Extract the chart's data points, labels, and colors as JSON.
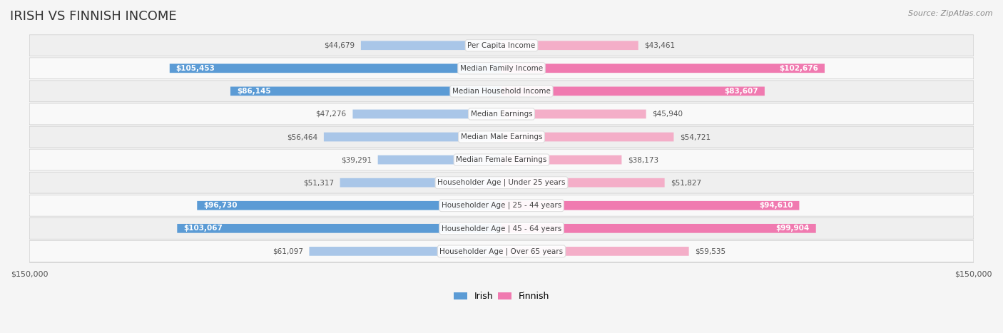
{
  "title": "IRISH VS FINNISH INCOME",
  "source": "Source: ZipAtlas.com",
  "categories": [
    "Per Capita Income",
    "Median Family Income",
    "Median Household Income",
    "Median Earnings",
    "Median Male Earnings",
    "Median Female Earnings",
    "Householder Age | Under 25 years",
    "Householder Age | 25 - 44 years",
    "Householder Age | 45 - 64 years",
    "Householder Age | Over 65 years"
  ],
  "irish_values": [
    44679,
    105453,
    86145,
    47276,
    56464,
    39291,
    51317,
    96730,
    103067,
    61097
  ],
  "finnish_values": [
    43461,
    102676,
    83607,
    45940,
    54721,
    38173,
    51827,
    94610,
    99904,
    59535
  ],
  "irish_labels": [
    "$44,679",
    "$105,453",
    "$86,145",
    "$47,276",
    "$56,464",
    "$39,291",
    "$51,317",
    "$96,730",
    "$103,067",
    "$61,097"
  ],
  "finnish_labels": [
    "$43,461",
    "$102,676",
    "$83,607",
    "$45,940",
    "$54,721",
    "$38,173",
    "$51,827",
    "$94,610",
    "$99,904",
    "$59,535"
  ],
  "max_value": 150000,
  "irish_color_dark": "#5b9bd5",
  "irish_color_light": "#a9c6e8",
  "finnish_color_dark": "#f07ab0",
  "finnish_color_light": "#f4aec8",
  "bg_color": "#f5f5f5",
  "row_bg": "#efefef",
  "row_bg_alt": "#f9f9f9",
  "label_bg": "#ffffff",
  "axis_label_color": "#555555",
  "title_color": "#333333",
  "source_color": "#888888"
}
